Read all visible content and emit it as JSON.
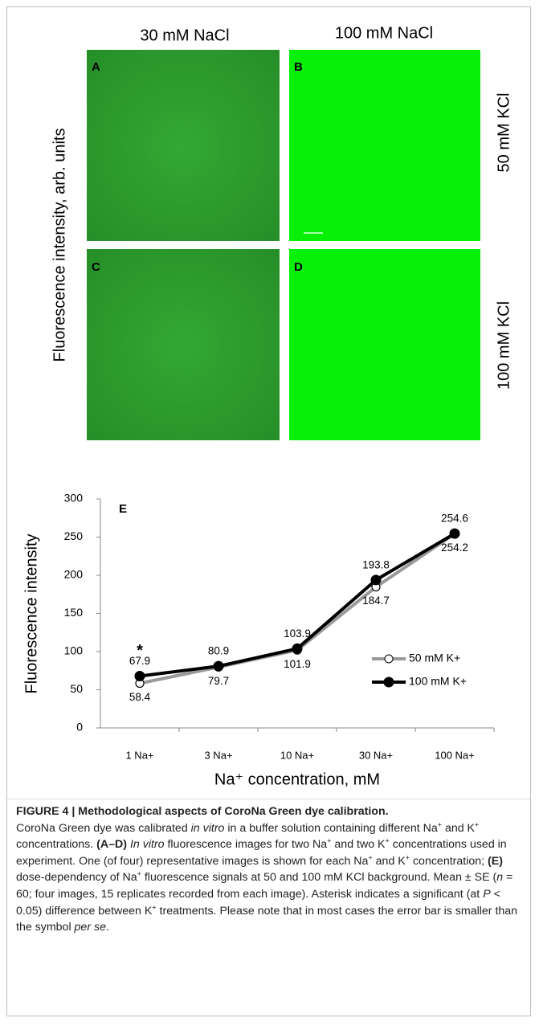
{
  "images": {
    "col_labels": [
      "30 mM NaCl",
      "100 mM NaCl"
    ],
    "row_labels": [
      "50 mM KCl",
      "100 mM KCl"
    ],
    "y_label": "Fluorescence intensity, arb. units",
    "panels": [
      "A",
      "B",
      "C",
      "D"
    ]
  },
  "chart_data": {
    "type": "line",
    "panel_label": "E",
    "y_label": "Fluorescence intensity",
    "x_label": "Na⁺ concentration, mM",
    "categories": [
      "1 Na+",
      "3 Na+",
      "10 Na+",
      "30 Na+",
      "100 Na+"
    ],
    "series": [
      {
        "name": "50 mM K+",
        "color": "#999999",
        "marker": "open",
        "values": [
          58.4,
          79.7,
          101.9,
          184.7,
          254.2
        ]
      },
      {
        "name": "100 mM K+",
        "color": "#000000",
        "marker": "filled",
        "values": [
          67.9,
          80.9,
          103.9,
          193.8,
          254.6
        ]
      }
    ],
    "annotation": "*",
    "ylim": [
      0,
      300
    ],
    "yticks": [
      0,
      50,
      100,
      150,
      200,
      250,
      300
    ],
    "grid": false,
    "legend": "right"
  },
  "caption": {
    "title": "FIGURE 4 | Methodological aspects of CoroNa Green dye calibration.",
    "body": [
      "CoroNa Green dye was calibrated ",
      "in vitro",
      " in a buffer solution containing different Na",
      "+",
      " and K",
      "+",
      " concentrations. ",
      "(A–D) ",
      "In vitro",
      " fluorescence images for two Na",
      "+",
      " and two K",
      "+",
      " concentrations used in experiment. One (of four) representative images is shown for each Na",
      "+",
      " and K",
      "+",
      " concentration; ",
      "(E)",
      " dose-dependency of Na",
      "+",
      " fluorescence signals at 50 and 100 mM KCl background. Mean ± SE (",
      "n",
      " = 60; four images, 15 replicates recorded from each image). Asterisk indicates a significant (at ",
      "P",
      " < 0.05) difference between K",
      "+",
      " treatments. Please note that in most cases the error bar is smaller than the symbol ",
      "per se",
      "."
    ]
  }
}
